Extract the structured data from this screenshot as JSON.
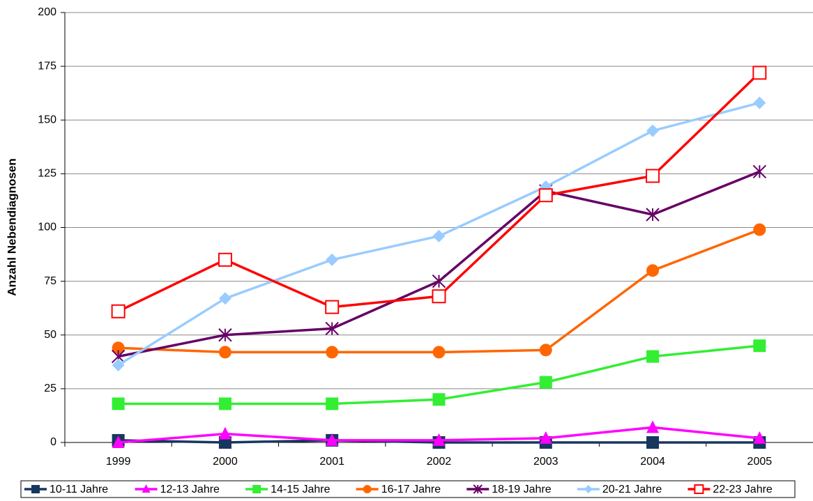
{
  "chart_data": {
    "type": "line",
    "y_label": "Anzahl Nebendiagnosen",
    "categories": [
      "1999",
      "2000",
      "2001",
      "2002",
      "2003",
      "2004",
      "2005"
    ],
    "ylim": [
      0,
      200
    ],
    "yticks": [
      0,
      25,
      50,
      75,
      100,
      125,
      150,
      175,
      200
    ],
    "grid": true,
    "legend": "bottom",
    "series": [
      {
        "name": "10-11 Jahre",
        "color": "#17375e",
        "marker": "square",
        "values": [
          1,
          0,
          1,
          0,
          0,
          0,
          0
        ]
      },
      {
        "name": "12-13 Jahre",
        "color": "#ff00ff",
        "marker": "triangle",
        "values": [
          0,
          4,
          1,
          1,
          2,
          7,
          2
        ]
      },
      {
        "name": "14-15 Jahre",
        "color": "#33ee33",
        "marker": "square",
        "values": [
          18,
          18,
          18,
          20,
          28,
          40,
          45
        ]
      },
      {
        "name": "16-17 Jahre",
        "color": "#ff6600",
        "marker": "circle",
        "values": [
          44,
          42,
          42,
          42,
          43,
          80,
          99
        ]
      },
      {
        "name": "18-19 Jahre",
        "color": "#660066",
        "marker": "star",
        "values": [
          40,
          50,
          53,
          75,
          117,
          106,
          126
        ]
      },
      {
        "name": "20-21 Jahre",
        "color": "#99ccff",
        "marker": "diamond",
        "values": [
          36,
          67,
          85,
          96,
          119,
          145,
          158
        ]
      },
      {
        "name": "22-23 Jahre",
        "color": "#ff0000",
        "marker": "open-square",
        "values": [
          61,
          85,
          63,
          68,
          115,
          124,
          172
        ]
      }
    ]
  }
}
